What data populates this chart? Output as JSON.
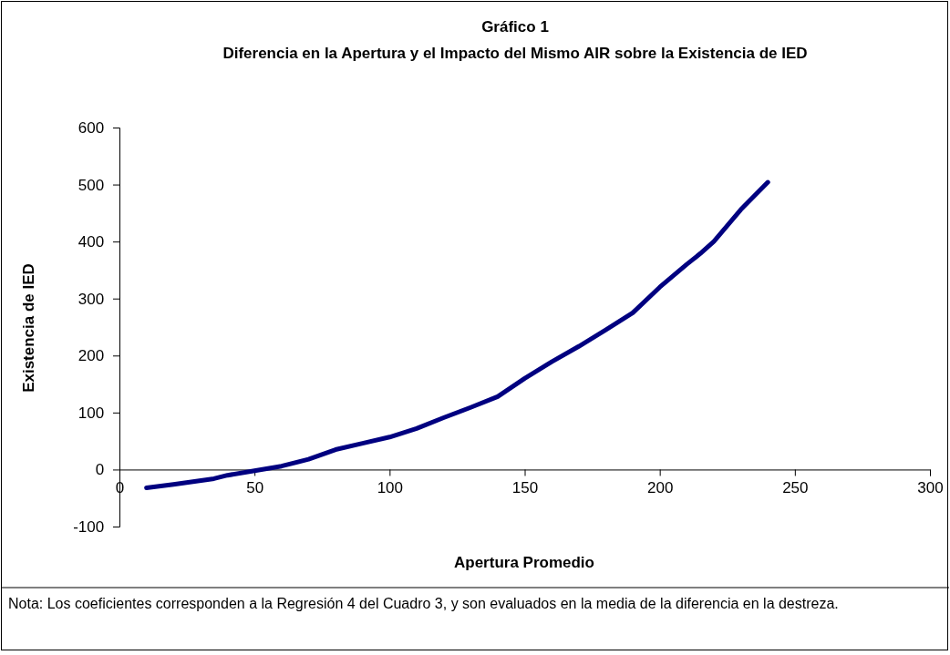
{
  "chart_data": {
    "type": "line",
    "title": "Gráfico 1",
    "subtitle": "Diferencia en la Apertura y el Impacto del Mismo AIR sobre la Existencia de IED",
    "xlabel": "Apertura Promedio",
    "ylabel": "Existencia de IED",
    "annotations": [
      "Nota: Los coeficientes corresponden a la Regresión 4 del Cuadro 3, y son evaluados en la media de la diferencia en la destreza."
    ],
    "x": [
      10,
      20,
      35,
      40,
      50,
      60,
      70,
      80,
      90,
      100,
      110,
      120,
      130,
      140,
      150,
      160,
      170,
      180,
      190,
      200,
      210,
      215,
      220,
      230,
      240
    ],
    "series": [
      {
        "color": "#000080",
        "values": [
          -32,
          -26,
          -16,
          -10,
          -2,
          6,
          18,
          35,
          46,
          57,
          72,
          91,
          109,
          128,
          160,
          189,
          216,
          245,
          275,
          320,
          360,
          379,
          400,
          456,
          504
        ]
      }
    ],
    "xlim": [
      0,
      300
    ],
    "xticks": [
      0,
      50,
      100,
      150,
      200,
      250,
      300
    ],
    "ylim": [
      -100,
      600
    ],
    "yticks": [
      -100,
      0,
      100,
      200,
      300,
      400,
      500,
      600
    ],
    "grid": false,
    "marker": "none",
    "line_style": "solid"
  }
}
